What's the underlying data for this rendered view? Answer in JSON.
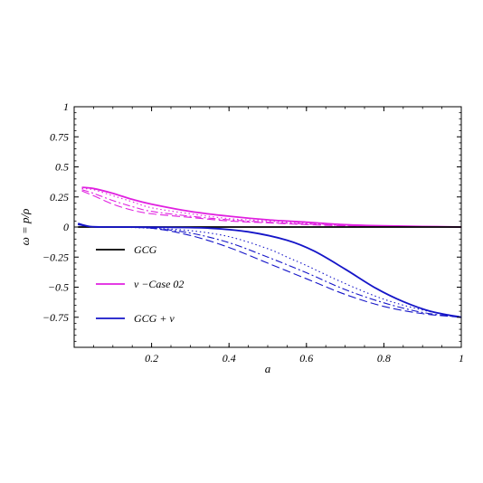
{
  "chart_data": {
    "type": "line",
    "title": "",
    "xlabel": "a",
    "ylabel": "ω = p/ρ",
    "xlim": [
      0,
      1
    ],
    "ylim": [
      -1,
      1
    ],
    "x_ticks": [
      0.2,
      0.4,
      0.6,
      0.8,
      1
    ],
    "x_tick_labels": [
      "0.2",
      "0.4",
      "0.6",
      "0.8",
      "1"
    ],
    "y_ticks": [
      1,
      0.75,
      0.5,
      0.25,
      0,
      -0.25,
      -0.5,
      -0.75
    ],
    "y_tick_labels": [
      "1",
      "0.75",
      "0.5",
      "0.25",
      "0",
      "−0.25",
      "−0.5",
      "−0.75"
    ],
    "grid": false,
    "legend_position": "lower-left",
    "legend": [
      {
        "label": "GCG",
        "color": "#000000"
      },
      {
        "label": "ν −Case 02",
        "color": "#e020e0"
      },
      {
        "label": "GCG + ν",
        "color": "#1515c8"
      }
    ],
    "series": [
      {
        "group": "ν −Case 02",
        "color": "#e020e0",
        "dash": "solid",
        "x": [
          0.02,
          0.05,
          0.1,
          0.15,
          0.2,
          0.3,
          0.4,
          0.5,
          0.6,
          0.7,
          0.8,
          0.9,
          1.0
        ],
        "y": [
          0.33,
          0.32,
          0.28,
          0.23,
          0.19,
          0.13,
          0.09,
          0.06,
          0.04,
          0.02,
          0.01,
          0.005,
          0.0
        ]
      },
      {
        "group": "ν −Case 02",
        "color": "#e020e0",
        "dash": "dot",
        "x": [
          0.02,
          0.05,
          0.1,
          0.15,
          0.2,
          0.3,
          0.4,
          0.5,
          0.6,
          0.7,
          0.8,
          0.9,
          1.0
        ],
        "y": [
          0.32,
          0.31,
          0.26,
          0.21,
          0.16,
          0.11,
          0.07,
          0.05,
          0.03,
          0.015,
          0.008,
          0.003,
          0.0
        ]
      },
      {
        "group": "ν −Case 02",
        "color": "#e020e0",
        "dash": "dashdot",
        "x": [
          0.02,
          0.05,
          0.1,
          0.15,
          0.2,
          0.3,
          0.4,
          0.5,
          0.6,
          0.7,
          0.8,
          0.9,
          1.0
        ],
        "y": [
          0.31,
          0.28,
          0.22,
          0.17,
          0.13,
          0.09,
          0.06,
          0.04,
          0.025,
          0.012,
          0.006,
          0.002,
          0.0
        ]
      },
      {
        "group": "ν −Case 02",
        "color": "#e020e0",
        "dash": "dash",
        "x": [
          0.02,
          0.05,
          0.1,
          0.15,
          0.2,
          0.3,
          0.4,
          0.5,
          0.6,
          0.7,
          0.8,
          0.9,
          1.0
        ],
        "y": [
          0.3,
          0.26,
          0.19,
          0.14,
          0.11,
          0.08,
          0.05,
          0.035,
          0.02,
          0.01,
          0.005,
          0.002,
          0.0
        ]
      },
      {
        "group": "GCG",
        "color": "#000000",
        "dash": "solid",
        "x": [
          0.01,
          0.1,
          0.2,
          0.3,
          0.4,
          0.5,
          0.6,
          0.7,
          0.8,
          0.9,
          1.0
        ],
        "y": [
          0.0,
          0.0,
          0.0,
          0.0,
          0.0,
          0.0,
          0.0,
          0.0,
          0.0,
          0.0,
          0.0
        ]
      },
      {
        "group": "GCG + ν",
        "color": "#1515c8",
        "dash": "solid",
        "x": [
          0.01,
          0.02,
          0.04,
          0.08,
          0.15,
          0.25,
          0.35,
          0.45,
          0.55,
          0.62,
          0.7,
          0.78,
          0.85,
          0.92,
          1.0
        ],
        "y": [
          0.03,
          0.02,
          0.005,
          0.0,
          0.0,
          -0.003,
          -0.01,
          -0.04,
          -0.11,
          -0.2,
          -0.35,
          -0.51,
          -0.62,
          -0.7,
          -0.75
        ]
      },
      {
        "group": "GCG + ν",
        "color": "#1515c8",
        "dash": "dot",
        "x": [
          0.01,
          0.05,
          0.1,
          0.2,
          0.3,
          0.4,
          0.5,
          0.55,
          0.6,
          0.7,
          0.8,
          0.9,
          1.0
        ],
        "y": [
          0.02,
          0.0,
          0.0,
          -0.01,
          -0.03,
          -0.08,
          -0.18,
          -0.25,
          -0.32,
          -0.47,
          -0.6,
          -0.69,
          -0.75
        ]
      },
      {
        "group": "GCG + ν",
        "color": "#1515c8",
        "dash": "dashdot",
        "x": [
          0.01,
          0.05,
          0.1,
          0.2,
          0.3,
          0.4,
          0.5,
          0.6,
          0.7,
          0.8,
          0.9,
          1.0
        ],
        "y": [
          0.02,
          0.0,
          0.0,
          -0.01,
          -0.05,
          -0.13,
          -0.25,
          -0.38,
          -0.52,
          -0.63,
          -0.71,
          -0.75
        ]
      },
      {
        "group": "GCG + ν",
        "color": "#1515c8",
        "dash": "dash",
        "x": [
          0.01,
          0.05,
          0.1,
          0.2,
          0.3,
          0.4,
          0.5,
          0.6,
          0.7,
          0.8,
          0.9,
          1.0
        ],
        "y": [
          0.02,
          0.0,
          0.0,
          -0.01,
          -0.07,
          -0.17,
          -0.3,
          -0.43,
          -0.56,
          -0.66,
          -0.72,
          -0.75
        ]
      }
    ]
  }
}
